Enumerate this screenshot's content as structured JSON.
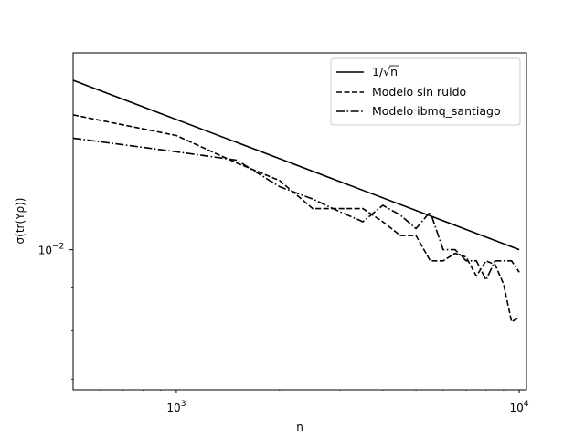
{
  "chart_data": {
    "type": "line",
    "xscale": "log",
    "yscale": "log",
    "xlabel": "n",
    "ylabel": "σ(tr(Yρ))",
    "xlim": [
      500,
      10500
    ],
    "ylim": [
      0.0068,
      0.0172
    ],
    "x_ticks": [
      {
        "value": 1000,
        "base": "10",
        "exp": "3"
      },
      {
        "value": 10000,
        "base": "10",
        "exp": "4"
      }
    ],
    "y_ticks": [
      {
        "value": 0.01,
        "base": "10",
        "exp": "−2"
      }
    ],
    "grid": false,
    "legend_position": "top-right",
    "series": [
      {
        "name": "1/√n",
        "style": "solid",
        "color": "#000000",
        "x": [
          500,
          10000
        ],
        "y": [
          0.01595,
          0.01
        ]
      },
      {
        "name": "Modelo sin ruido",
        "style": "dashed",
        "color": "#000000",
        "x": [
          500,
          1000,
          1500,
          2000,
          2500,
          3000,
          3500,
          4000,
          4500,
          5000,
          5500,
          6000,
          6500,
          7000,
          7500,
          8000,
          8500,
          9000,
          9500,
          10000
        ],
        "y": [
          0.0145,
          0.0137,
          0.0127,
          0.0121,
          0.0112,
          0.0112,
          0.0112,
          0.0108,
          0.0104,
          0.0104,
          0.0097,
          0.0097,
          0.0099,
          0.0098,
          0.0093,
          0.0097,
          0.0096,
          0.0091,
          0.0082,
          0.0083
        ]
      },
      {
        "name": "Modelo ibmq_santiago",
        "style": "dashdot",
        "color": "#000000",
        "x": [
          500,
          1000,
          1500,
          2000,
          2500,
          3000,
          3500,
          4000,
          4500,
          5000,
          5500,
          6000,
          6500,
          7000,
          7500,
          8000,
          8500,
          9000,
          9500,
          10000
        ],
        "y": [
          0.0136,
          0.0131,
          0.0128,
          0.0119,
          0.0115,
          0.0111,
          0.0108,
          0.0113,
          0.011,
          0.0106,
          0.0111,
          0.01,
          0.01,
          0.0097,
          0.0097,
          0.0092,
          0.0097,
          0.0097,
          0.0097,
          0.0094
        ]
      }
    ]
  }
}
